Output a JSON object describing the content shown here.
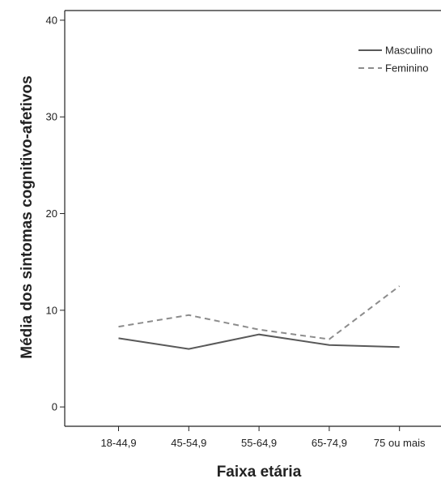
{
  "chart_data": {
    "type": "line",
    "categories": [
      "18-44,9",
      "45-54,9",
      "55-64,9",
      "65-74,9",
      "75 ou mais"
    ],
    "series": [
      {
        "name": "Masculino",
        "values": [
          7.1,
          6.0,
          7.5,
          6.4,
          6.2
        ],
        "color": "#595959",
        "dash": "solid"
      },
      {
        "name": "Feminino",
        "values": [
          8.3,
          9.5,
          8.0,
          7.0,
          12.5
        ],
        "color": "#8c8c8c",
        "dash": "dashed"
      }
    ],
    "ylim": [
      -2,
      41
    ],
    "yticks": [
      0,
      10,
      20,
      30,
      40
    ],
    "xlabel": "Faixa etária",
    "ylabel": "Média dos sintomas cognitivo-afetivos",
    "legend_position": "top-right",
    "grid": false
  }
}
